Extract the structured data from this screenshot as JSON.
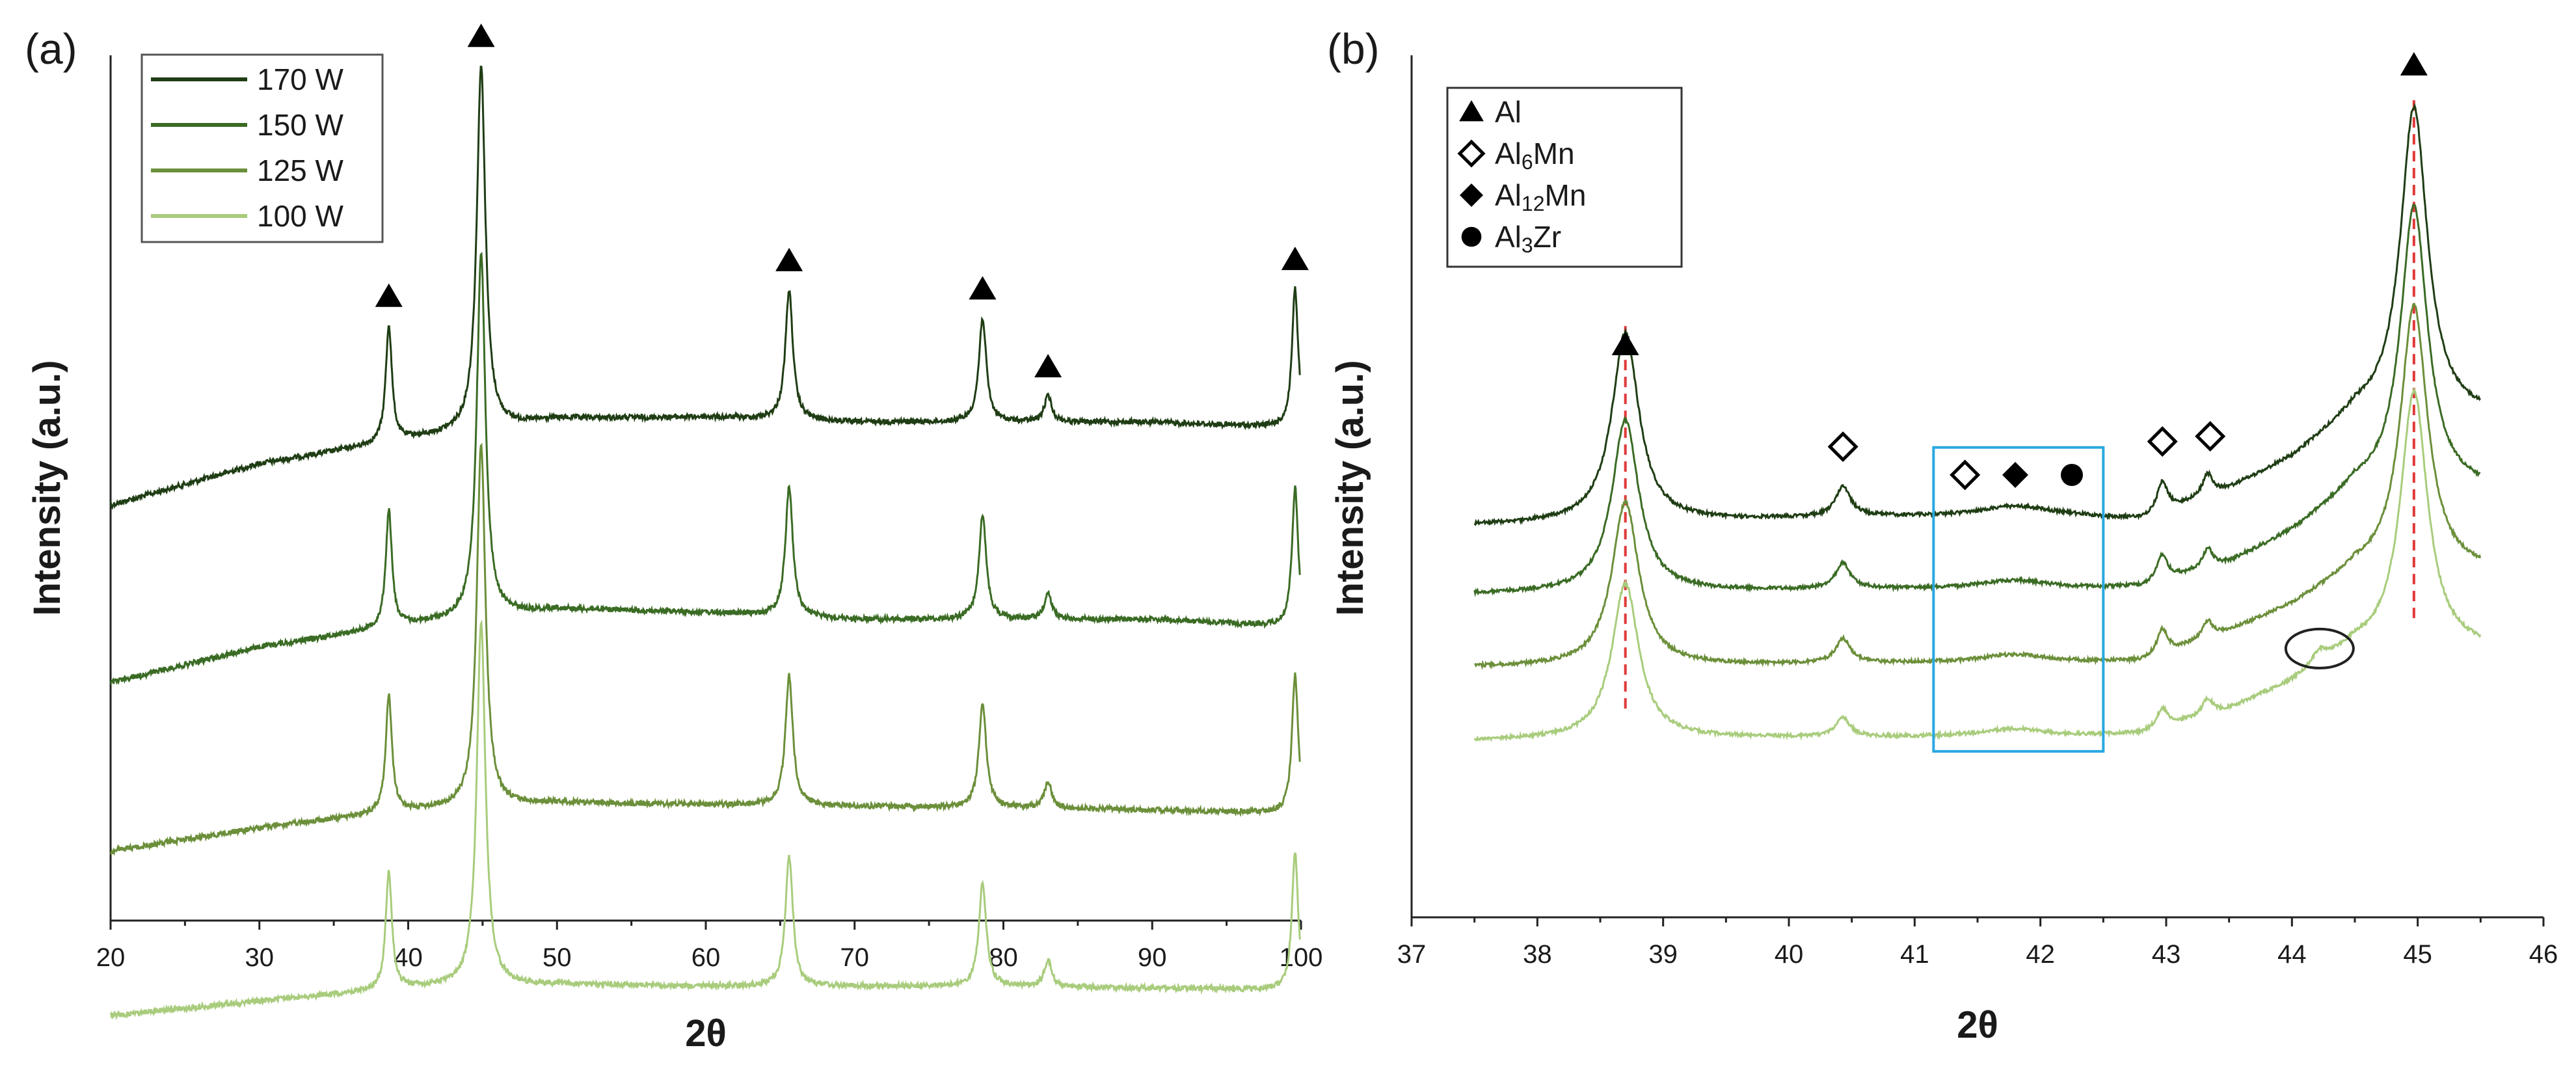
{
  "chart_data": [
    {
      "panel_label": "(a)",
      "type": "line",
      "title": "",
      "xlabel": "2θ",
      "ylabel": "Intensity (a.u.)",
      "xlim": [
        20,
        100
      ],
      "xticks": [
        "20",
        "30",
        "40",
        "50",
        "60",
        "70",
        "80",
        "90",
        "100"
      ],
      "y_ticks_shown": false,
      "legend": {
        "placement": "top-left",
        "entries": [
          "170 W",
          "150 W",
          "125 W",
          "100 W"
        ]
      },
      "series": [
        {
          "name": "170 W",
          "color": "#1f3d14",
          "baseline": [
            [
              20,
              0.52
            ],
            [
              30,
              0.472
            ],
            [
              40,
              0.444
            ],
            [
              50,
              0.42
            ],
            [
              60,
              0.418
            ],
            [
              70,
              0.424
            ],
            [
              80,
              0.424
            ],
            [
              90,
              0.424
            ],
            [
              99,
              0.43
            ]
          ]
        },
        {
          "name": "150 W",
          "color": "#3a6b24",
          "baseline": [
            [
              20,
              0.725
            ],
            [
              30,
              0.684
            ],
            [
              40,
              0.658
            ],
            [
              50,
              0.64
            ],
            [
              60,
              0.644
            ],
            [
              70,
              0.652
            ],
            [
              80,
              0.652
            ],
            [
              90,
              0.652
            ],
            [
              99,
              0.66
            ]
          ]
        },
        {
          "name": "125 W",
          "color": "#6b8f3a",
          "baseline": [
            [
              20,
              0.92
            ],
            [
              30,
              0.893
            ],
            [
              40,
              0.873
            ],
            [
              50,
              0.864
            ],
            [
              60,
              0.866
            ],
            [
              70,
              0.868
            ],
            [
              80,
              0.87
            ],
            [
              90,
              0.872
            ],
            [
              99,
              0.876
            ]
          ]
        },
        {
          "name": "100 W",
          "color": "#a8cc7c",
          "baseline": [
            [
              20,
              1.11
            ],
            [
              30,
              1.093
            ],
            [
              40,
              1.078
            ],
            [
              50,
              1.074
            ],
            [
              60,
              1.076
            ],
            [
              70,
              1.076
            ],
            [
              80,
              1.076
            ],
            [
              90,
              1.078
            ],
            [
              99,
              1.08
            ]
          ]
        }
      ],
      "peaks": [
        {
          "x": 38.7,
          "height": 0.135,
          "width": 0.25
        },
        {
          "x": 44.9,
          "height": 0.42,
          "width": 0.35
        },
        {
          "x": 65.6,
          "height": 0.15,
          "width": 0.3
        },
        {
          "x": 78.6,
          "height": 0.12,
          "width": 0.3
        },
        {
          "x": 83.0,
          "height": 0.03,
          "width": 0.3
        },
        {
          "x": 99.6,
          "height": 0.16,
          "width": 0.25
        }
      ],
      "phase_markers": [
        {
          "x": 38.7,
          "phase": "Al"
        },
        {
          "x": 44.9,
          "phase": "Al"
        },
        {
          "x": 65.6,
          "phase": "Al"
        },
        {
          "x": 78.6,
          "phase": "Al"
        },
        {
          "x": 83.0,
          "phase": "Al"
        },
        {
          "x": 99.6,
          "phase": "Al"
        }
      ]
    },
    {
      "panel_label": "(b)",
      "type": "line",
      "title": "",
      "xlabel": "2θ",
      "ylabel": "Intensity (a.u.)",
      "xlim": [
        37,
        46
      ],
      "xticks": [
        "37",
        "38",
        "39",
        "40",
        "41",
        "42",
        "43",
        "44",
        "45",
        "46"
      ],
      "y_ticks_shown": false,
      "legend": {
        "placement": "top-left",
        "entries": [
          {
            "symbol": "filled-triangle",
            "label": "Al"
          },
          {
            "symbol": "open-diamond",
            "label": "Al",
            "sub": "6",
            "suffix": "Mn"
          },
          {
            "symbol": "filled-diamond",
            "label": "Al",
            "sub": "12",
            "suffix": "Mn"
          },
          {
            "symbol": "filled-circle",
            "label": "Al",
            "sub": "3",
            "suffix": "Zr"
          }
        ]
      },
      "series": [
        {
          "name": "170 W",
          "color": "#1f3d14",
          "baseline": [
            [
              37.5,
              0.545
            ],
            [
              39.5,
              0.54
            ],
            [
              40.6,
              0.536
            ],
            [
              42.2,
              0.536
            ],
            [
              42.8,
              0.54
            ],
            [
              43.5,
              0.505
            ],
            [
              44.0,
              0.47
            ],
            [
              44.5,
              0.42
            ]
          ],
          "peaks": [
            [
              38.7,
              0.22,
              0.13
            ],
            [
              40.43,
              0.035,
              0.07
            ],
            [
              41.8,
              0.012,
              0.35
            ],
            [
              42.97,
              0.035,
              0.05
            ],
            [
              43.33,
              0.025,
              0.05
            ],
            [
              44.97,
              0.36,
              0.13
            ]
          ]
        },
        {
          "name": "150 W",
          "color": "#3a6b24",
          "baseline": [
            [
              37.5,
              0.625
            ],
            [
              39.5,
              0.622
            ],
            [
              40.6,
              0.62
            ],
            [
              42.2,
              0.62
            ],
            [
              42.8,
              0.618
            ],
            [
              43.5,
              0.59
            ],
            [
              44.0,
              0.555
            ],
            [
              44.5,
              0.505
            ]
          ],
          "peaks": [
            [
              38.7,
              0.2,
              0.13
            ],
            [
              40.43,
              0.03,
              0.07
            ],
            [
              41.8,
              0.01,
              0.35
            ],
            [
              42.97,
              0.03,
              0.05
            ],
            [
              43.33,
              0.022,
              0.05
            ],
            [
              44.97,
              0.33,
              0.13
            ]
          ]
        },
        {
          "name": "125 W",
          "color": "#6b8f3a",
          "baseline": [
            [
              37.5,
              0.71
            ],
            [
              39.5,
              0.708
            ],
            [
              40.6,
              0.706
            ],
            [
              42.2,
              0.706
            ],
            [
              42.8,
              0.704
            ],
            [
              43.5,
              0.67
            ],
            [
              44.0,
              0.64
            ],
            [
              44.5,
              0.6
            ]
          ],
          "peaks": [
            [
              38.7,
              0.19,
              0.13
            ],
            [
              40.43,
              0.028,
              0.07
            ],
            [
              41.8,
              0.01,
              0.35
            ],
            [
              42.97,
              0.028,
              0.05
            ],
            [
              43.33,
              0.02,
              0.05
            ],
            [
              44.97,
              0.31,
              0.13
            ]
          ]
        },
        {
          "name": "100 W",
          "color": "#a8cc7c",
          "baseline": [
            [
              37.5,
              0.795
            ],
            [
              39.5,
              0.792
            ],
            [
              40.6,
              0.792
            ],
            [
              42.2,
              0.792
            ],
            [
              42.8,
              0.788
            ],
            [
              43.5,
              0.76
            ],
            [
              44.0,
              0.73
            ],
            [
              44.5,
              0.69
            ]
          ],
          "peaks": [
            [
              38.7,
              0.18,
              0.13
            ],
            [
              40.43,
              0.022,
              0.07
            ],
            [
              41.8,
              0.01,
              0.35
            ],
            [
              42.97,
              0.022,
              0.05
            ],
            [
              43.33,
              0.018,
              0.05
            ],
            [
              44.22,
              0.015,
              0.08
            ],
            [
              44.97,
              0.3,
              0.13
            ]
          ]
        }
      ],
      "reference_lines": [
        {
          "x": 38.7,
          "style": "dashed",
          "color": "#e03a3a"
        },
        {
          "x": 44.97,
          "style": "dashed",
          "color": "#e03a3a"
        }
      ],
      "phase_markers": [
        {
          "x": 38.7,
          "phase": "Al",
          "symbol": "filled-triangle"
        },
        {
          "x": 40.43,
          "phase": "Al6Mn",
          "symbol": "open-diamond"
        },
        {
          "x": 41.4,
          "phase": "Al6Mn",
          "symbol": "open-diamond"
        },
        {
          "x": 41.8,
          "phase": "Al12Mn",
          "symbol": "filled-diamond"
        },
        {
          "x": 42.25,
          "phase": "Al3Zr",
          "symbol": "filled-circle"
        },
        {
          "x": 42.97,
          "phase": "Al6Mn",
          "symbol": "open-diamond"
        },
        {
          "x": 43.35,
          "phase": "Al6Mn",
          "symbol": "open-diamond"
        },
        {
          "x": 44.97,
          "phase": "Al",
          "symbol": "filled-triangle"
        }
      ],
      "annotations": [
        {
          "type": "rectangle",
          "x_range": [
            41.15,
            42.5
          ],
          "color": "#29a8e0"
        },
        {
          "type": "ellipse",
          "x_center": 44.22,
          "color": "#222222"
        }
      ]
    }
  ]
}
